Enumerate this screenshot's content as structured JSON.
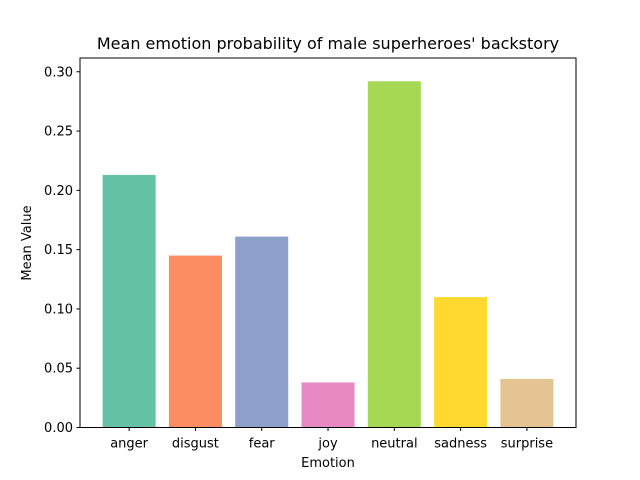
{
  "chart_data": {
    "type": "bar",
    "title": "Mean emotion probability of male superheroes' backstory",
    "xlabel": "Emotion",
    "ylabel": "Mean Value",
    "categories": [
      "anger",
      "disgust",
      "fear",
      "joy",
      "neutral",
      "sadness",
      "surprise"
    ],
    "values": [
      0.213,
      0.145,
      0.161,
      0.038,
      0.292,
      0.11,
      0.041
    ],
    "colors": [
      "#66c2a5",
      "#fc8d62",
      "#8da0cb",
      "#e78ac3",
      "#a6d854",
      "#ffd92f",
      "#e5c494"
    ],
    "ylim": [
      0,
      0.3116
    ],
    "yticks": [
      "0.00",
      "0.05",
      "0.10",
      "0.15",
      "0.20",
      "0.25",
      "0.30"
    ],
    "grid": false,
    "legend": "none"
  }
}
